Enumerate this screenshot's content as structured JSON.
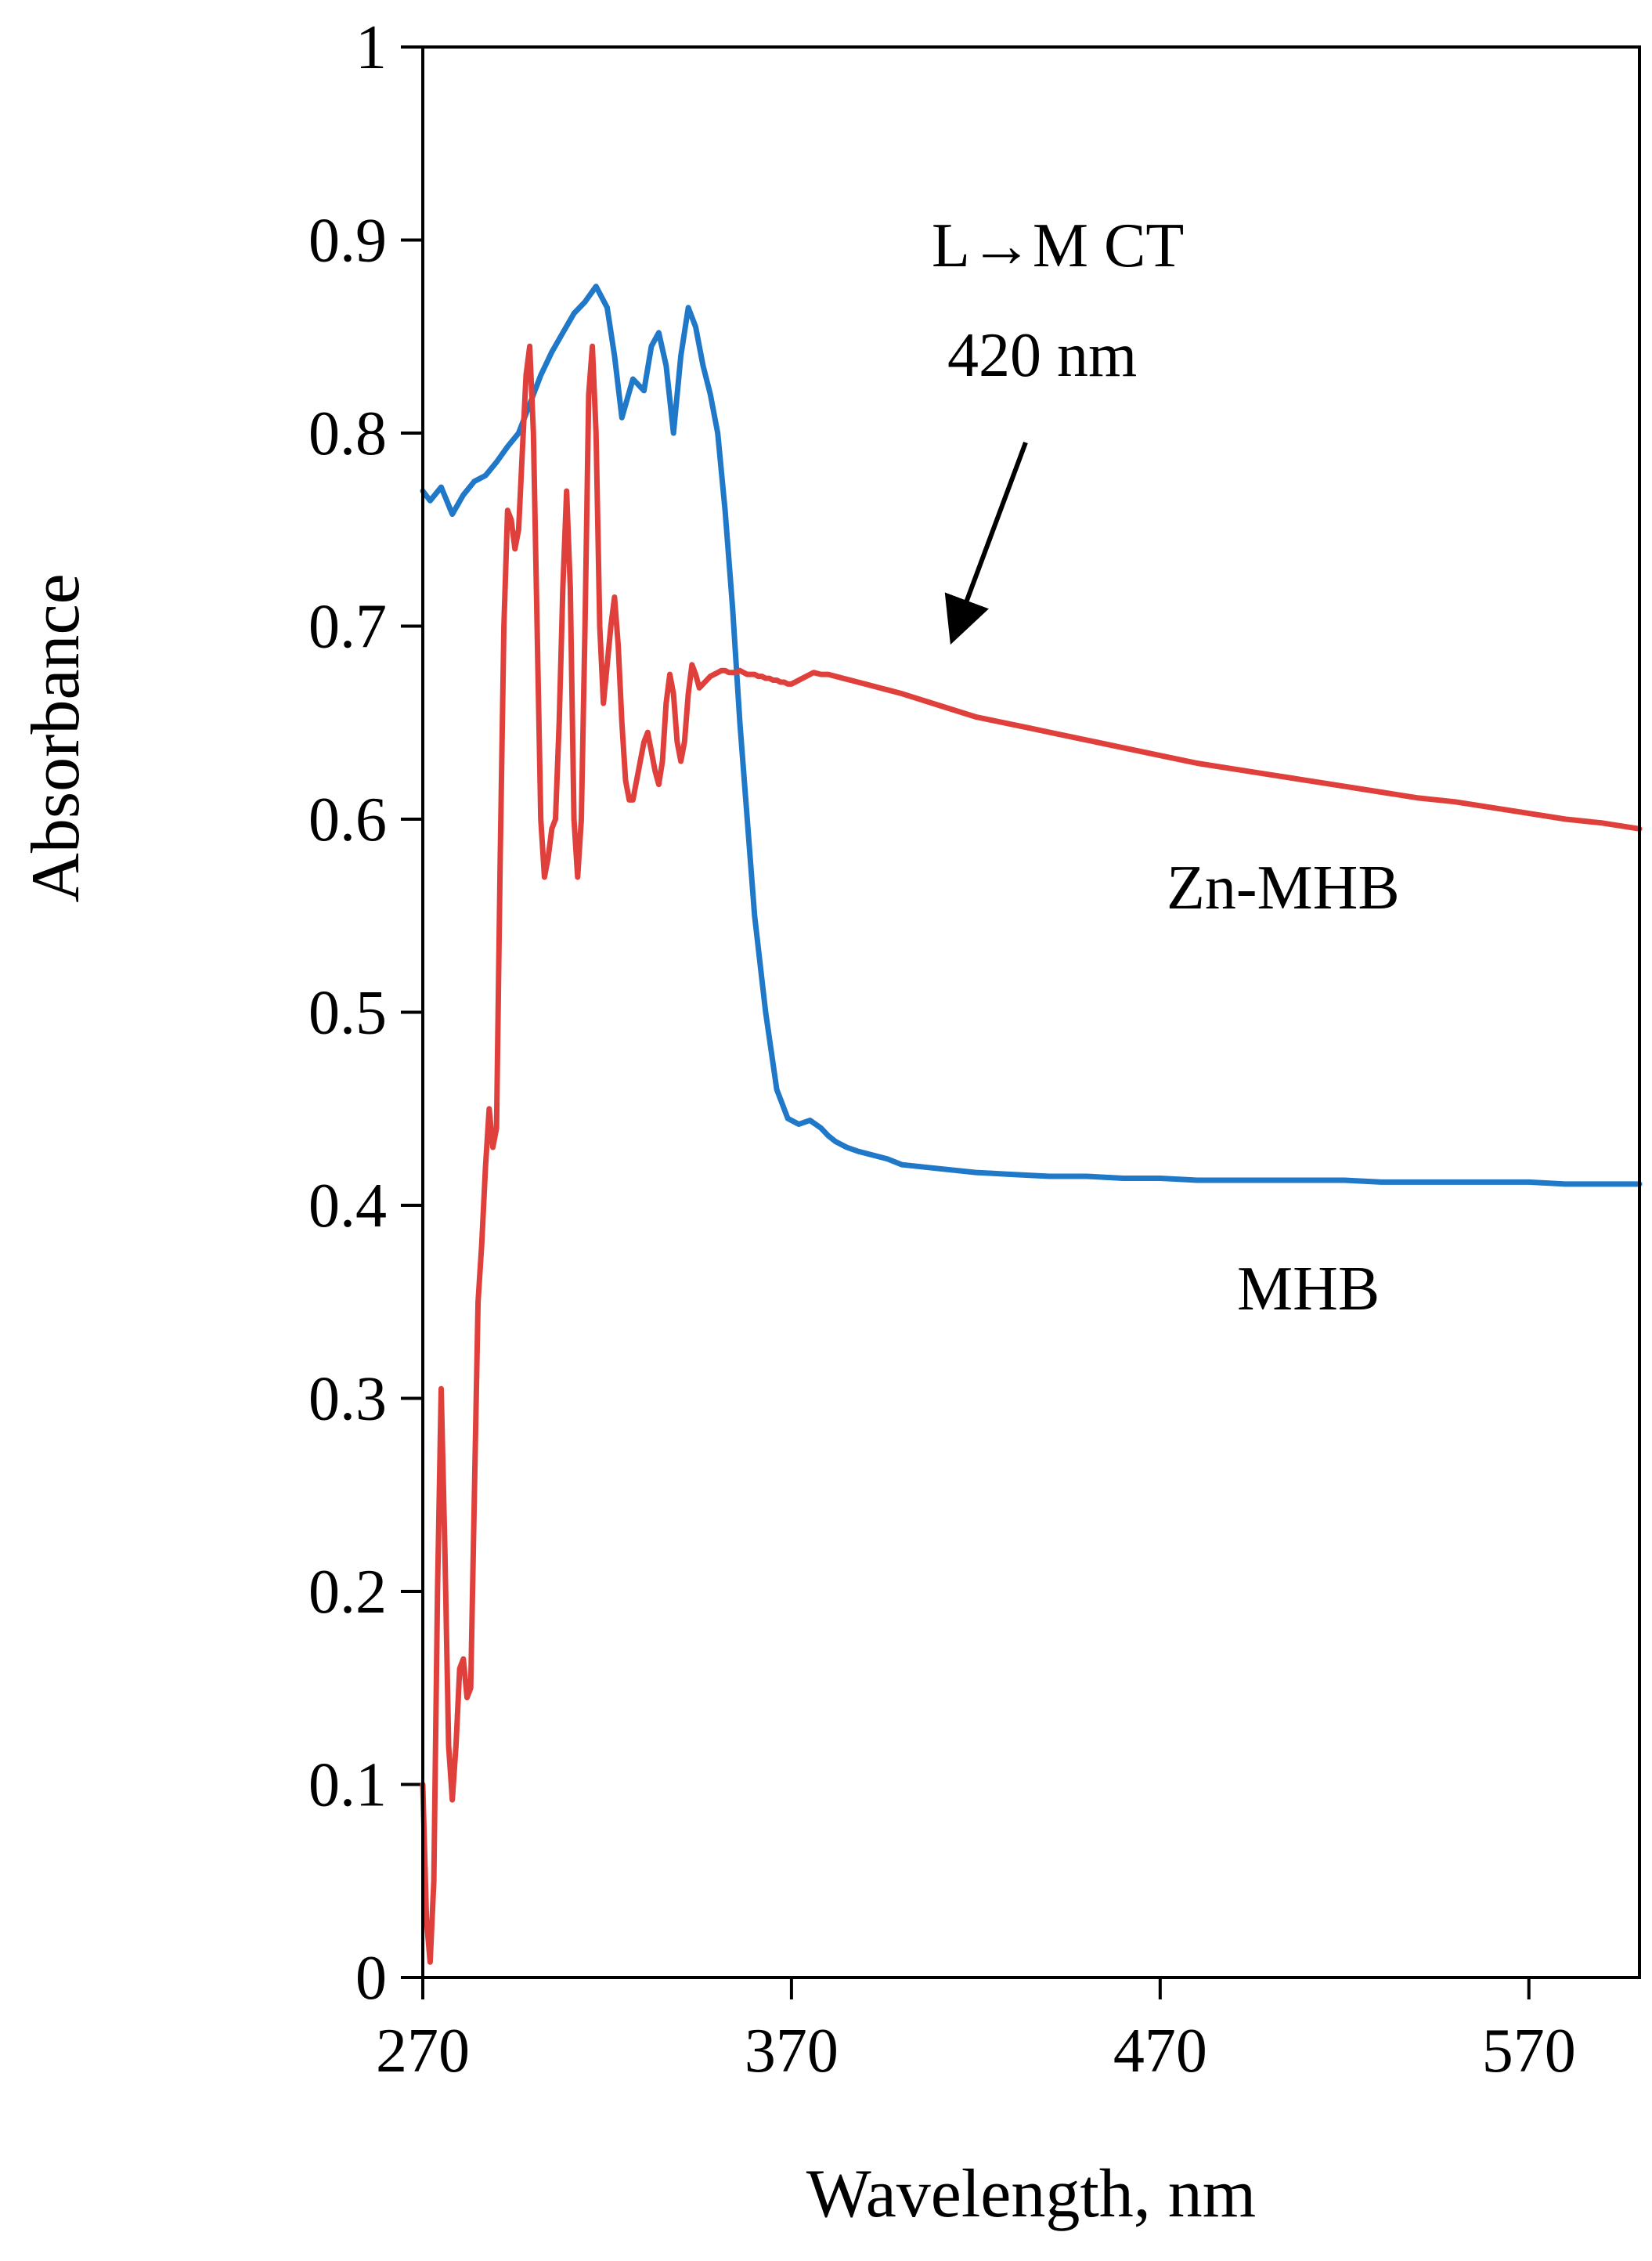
{
  "chart_data": {
    "type": "line",
    "title": "",
    "xlabel": "Wavelength, nm",
    "ylabel": "Absorbance",
    "xlim": [
      270,
      600
    ],
    "ylim": [
      0,
      1
    ],
    "xticks": [
      270,
      370,
      470,
      570
    ],
    "xtick_labels": [
      "270",
      "370",
      "470",
      "570"
    ],
    "yticks": [
      0,
      0.1,
      0.2,
      0.3,
      0.4,
      0.5,
      0.6,
      0.7,
      0.8,
      0.9,
      1
    ],
    "ytick_labels": [
      "0",
      "0.1",
      "0.2",
      "0.3",
      "0.4",
      "0.5",
      "0.6",
      "0.7",
      "0.8",
      "0.9",
      "1"
    ],
    "grid": false,
    "series": [
      {
        "name": "MHB",
        "color": "#1f78c8",
        "x": [
          270,
          272,
          275,
          278,
          281,
          284,
          287,
          290,
          293,
          296,
          299,
          302,
          305,
          308,
          311,
          314,
          317,
          320,
          322,
          324,
          327,
          330,
          332,
          334,
          336,
          338,
          340,
          342,
          344,
          346,
          348,
          350,
          352,
          354,
          356,
          358,
          360,
          363,
          366,
          369,
          372,
          375,
          378,
          380,
          382,
          385,
          388,
          392,
          396,
          400,
          410,
          420,
          430,
          440,
          450,
          460,
          470,
          480,
          490,
          500,
          510,
          520,
          530,
          540,
          550,
          560,
          570,
          580,
          590,
          600
        ],
        "y": [
          0.77,
          0.765,
          0.772,
          0.758,
          0.768,
          0.775,
          0.778,
          0.785,
          0.793,
          0.8,
          0.815,
          0.83,
          0.842,
          0.852,
          0.862,
          0.868,
          0.876,
          0.865,
          0.84,
          0.808,
          0.828,
          0.822,
          0.845,
          0.852,
          0.835,
          0.8,
          0.84,
          0.865,
          0.855,
          0.835,
          0.82,
          0.8,
          0.76,
          0.71,
          0.65,
          0.6,
          0.55,
          0.5,
          0.46,
          0.445,
          0.442,
          0.444,
          0.44,
          0.436,
          0.433,
          0.43,
          0.428,
          0.426,
          0.424,
          0.421,
          0.419,
          0.417,
          0.416,
          0.415,
          0.415,
          0.414,
          0.414,
          0.413,
          0.413,
          0.413,
          0.413,
          0.413,
          0.412,
          0.412,
          0.412,
          0.412,
          0.412,
          0.411,
          0.411,
          0.411
        ]
      },
      {
        "name": "Zn-MHB",
        "color": "#e0403c",
        "x": [
          270,
          271,
          272,
          273,
          274,
          275,
          276,
          277,
          278,
          279,
          280,
          281,
          282,
          283,
          284,
          285,
          286,
          287,
          288,
          289,
          290,
          291,
          292,
          293,
          294,
          295,
          296,
          297,
          298,
          299,
          300,
          301,
          302,
          303,
          304,
          305,
          306,
          307,
          308,
          309,
          310,
          311,
          312,
          313,
          314,
          315,
          316,
          317,
          318,
          319,
          320,
          321,
          322,
          323,
          324,
          325,
          326,
          327,
          328,
          329,
          330,
          331,
          332,
          333,
          334,
          335,
          336,
          337,
          338,
          339,
          340,
          341,
          342,
          343,
          344,
          345,
          346,
          347,
          348,
          349,
          350,
          351,
          352,
          353,
          354,
          355,
          356,
          357,
          358,
          359,
          360,
          361,
          362,
          363,
          364,
          365,
          366,
          367,
          368,
          369,
          370,
          372,
          374,
          376,
          378,
          380,
          382,
          384,
          386,
          388,
          390,
          392,
          394,
          396,
          398,
          400,
          405,
          410,
          415,
          420,
          425,
          430,
          435,
          440,
          450,
          460,
          470,
          480,
          490,
          500,
          510,
          520,
          530,
          540,
          550,
          560,
          570,
          580,
          590,
          600
        ],
        "y": [
          0.1,
          0.03,
          0.008,
          0.05,
          0.2,
          0.305,
          0.22,
          0.12,
          0.092,
          0.12,
          0.16,
          0.165,
          0.145,
          0.15,
          0.25,
          0.35,
          0.38,
          0.42,
          0.45,
          0.43,
          0.44,
          0.58,
          0.7,
          0.76,
          0.755,
          0.74,
          0.75,
          0.79,
          0.83,
          0.845,
          0.8,
          0.7,
          0.6,
          0.57,
          0.58,
          0.595,
          0.6,
          0.65,
          0.72,
          0.77,
          0.72,
          0.6,
          0.57,
          0.6,
          0.7,
          0.82,
          0.845,
          0.8,
          0.7,
          0.66,
          0.68,
          0.7,
          0.715,
          0.69,
          0.65,
          0.62,
          0.61,
          0.61,
          0.62,
          0.63,
          0.64,
          0.645,
          0.635,
          0.625,
          0.618,
          0.63,
          0.66,
          0.675,
          0.665,
          0.64,
          0.63,
          0.64,
          0.665,
          0.68,
          0.675,
          0.668,
          0.67,
          0.672,
          0.674,
          0.675,
          0.676,
          0.677,
          0.677,
          0.676,
          0.676,
          0.676,
          0.677,
          0.676,
          0.675,
          0.675,
          0.675,
          0.674,
          0.674,
          0.673,
          0.673,
          0.672,
          0.672,
          0.671,
          0.671,
          0.67,
          0.67,
          0.672,
          0.674,
          0.676,
          0.675,
          0.675,
          0.674,
          0.673,
          0.672,
          0.671,
          0.67,
          0.669,
          0.668,
          0.667,
          0.666,
          0.665,
          0.662,
          0.659,
          0.656,
          0.653,
          0.651,
          0.649,
          0.647,
          0.645,
          0.641,
          0.637,
          0.633,
          0.629,
          0.626,
          0.623,
          0.62,
          0.617,
          0.614,
          0.611,
          0.609,
          0.606,
          0.603,
          0.6,
          0.598,
          0.595
        ]
      }
    ],
    "annotations": [
      {
        "id": "ct",
        "line1": "L→M  CT",
        "line2": "420 nm",
        "arrow_target_x": 414,
        "arrow_target_y": 0.695
      }
    ],
    "series_labels": [
      {
        "series": "Zn-MHB",
        "text": "Zn-MHB"
      },
      {
        "series": "MHB",
        "text": "MHB"
      }
    ]
  }
}
